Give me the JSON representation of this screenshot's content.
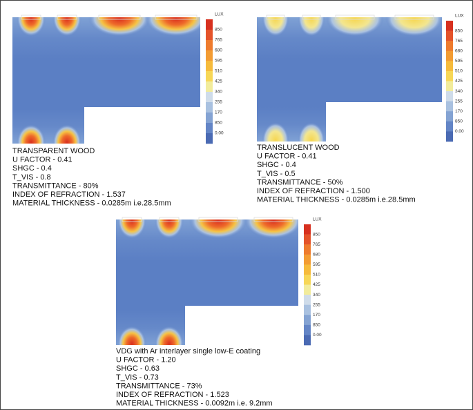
{
  "panels": [
    {
      "legend_title": "LUX",
      "legend_labels": [
        "850",
        "765",
        "680",
        "595",
        "510",
        "425",
        "340",
        "255",
        "170",
        "850",
        "0.00"
      ],
      "caption": [
        "TRANSPARENT WOOD",
        "U FACTOR - 0.41",
        "SHGC - 0.4",
        "T_VIS - 0.8",
        "TRANSMITTANCE - 80%",
        "INDEX OF REFRACTION - 1.537",
        "MATERIAL THICKNESS - 0.0285m i.e.28.5mm"
      ]
    },
    {
      "legend_title": "LUX",
      "legend_labels": [
        "850",
        "765",
        "680",
        "595",
        "510",
        "425",
        "340",
        "255",
        "170",
        "850",
        "0.00"
      ],
      "caption": [
        "TRANSLUCENT WOOD",
        "U FACTOR - 0.41",
        "SHGC - 0.4",
        "T_VIS - 0.5",
        "TRANSMITTANCE - 50%",
        "INDEX OF REFRACTION - 1.500",
        "MATERIAL THICKNESS - 0.0285m i.e.28.5mm"
      ]
    },
    {
      "legend_title": "LUX",
      "legend_labels": [
        "850",
        "765",
        "680",
        "595",
        "510",
        "425",
        "340",
        "255",
        "170",
        "850",
        "0.00"
      ],
      "caption": [
        "VDG with Ar interlayer single low-E coating",
        "U FACTOR - 1.20",
        "SHGC - 0.63",
        "T_VIS - 0.73",
        "TRANSMITTANCE - 73%",
        "INDEX OF REFRACTION - 1.523",
        "MATERIAL THICKNESS - 0.0092m i.e. 9.2mm"
      ]
    }
  ]
}
